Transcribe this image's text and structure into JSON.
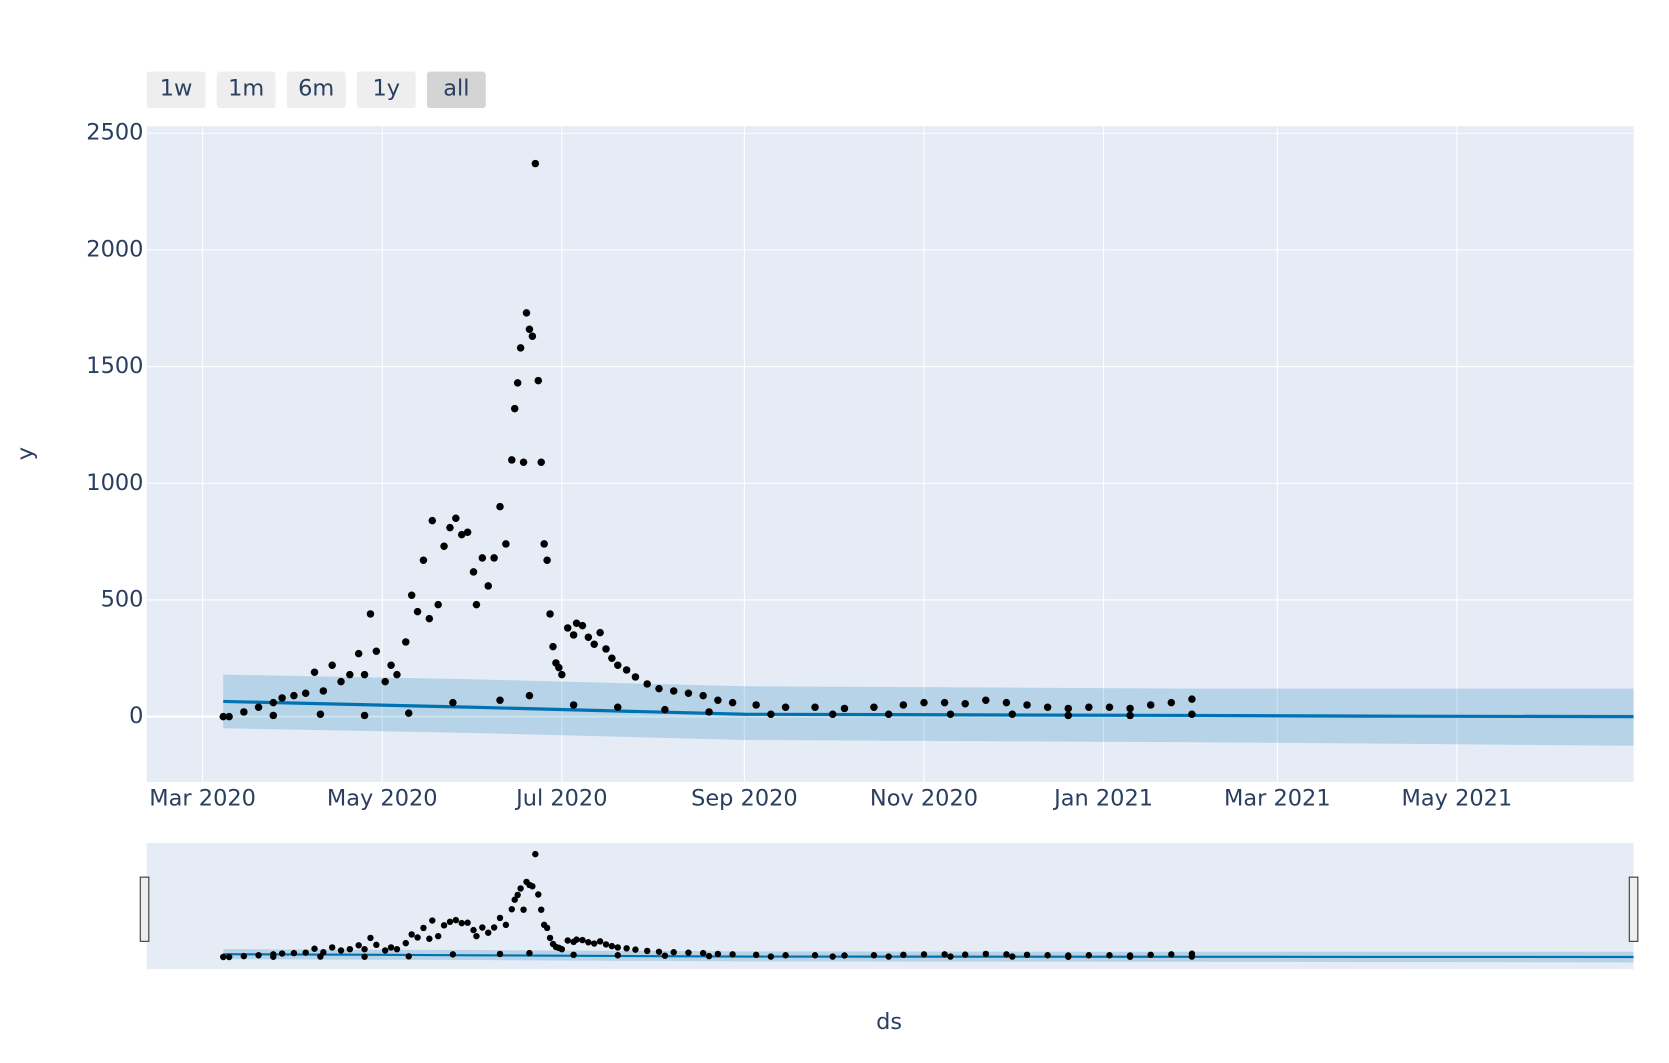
{
  "chart_data": {
    "type": "scatter",
    "x_label": "ds",
    "y_label": "y",
    "range_buttons": [
      {
        "label": "1w"
      },
      {
        "label": "1m"
      },
      {
        "label": "6m"
      },
      {
        "label": "1y"
      },
      {
        "label": "all",
        "active": true
      }
    ],
    "xlim": [
      "2020-02-11",
      "2021-06-30"
    ],
    "ylim": [
      -280,
      2530
    ],
    "grid": true,
    "xticks": [
      {
        "value": "2020-03-01",
        "label": "Mar 2020"
      },
      {
        "value": "2020-05-01",
        "label": "May 2020"
      },
      {
        "value": "2020-07-01",
        "label": "Jul 2020"
      },
      {
        "value": "2020-09-01",
        "label": "Sep 2020"
      },
      {
        "value": "2020-11-01",
        "label": "Nov 2020"
      },
      {
        "value": "2021-01-01",
        "label": "Jan 2021"
      },
      {
        "value": "2021-03-01",
        "label": "Mar 2021"
      },
      {
        "value": "2021-05-01",
        "label": "May 2021"
      }
    ],
    "yticks": [
      0,
      500,
      1000,
      1500,
      2000,
      2500
    ],
    "series": [
      {
        "color": "#000000",
        "x": [
          "2020-03-08",
          "2020-03-15",
          "2020-03-20",
          "2020-03-25",
          "2020-03-28",
          "2020-04-01",
          "2020-04-05",
          "2020-04-08",
          "2020-04-11",
          "2020-04-14",
          "2020-04-17",
          "2020-04-20",
          "2020-04-23",
          "2020-04-25",
          "2020-04-27",
          "2020-04-29",
          "2020-05-02",
          "2020-05-04",
          "2020-05-06",
          "2020-05-09",
          "2020-05-11",
          "2020-05-13",
          "2020-05-15",
          "2020-05-17",
          "2020-05-18",
          "2020-05-20",
          "2020-05-22",
          "2020-05-24",
          "2020-05-26",
          "2020-05-28",
          "2020-05-30",
          "2020-06-01",
          "2020-06-02",
          "2020-06-04",
          "2020-06-06",
          "2020-06-08",
          "2020-06-10",
          "2020-06-12",
          "2020-06-14",
          "2020-06-15",
          "2020-06-16",
          "2020-06-17",
          "2020-06-18",
          "2020-06-19",
          "2020-06-20",
          "2020-06-21",
          "2020-06-22",
          "2020-06-23",
          "2020-06-24",
          "2020-06-25",
          "2020-06-26",
          "2020-06-27",
          "2020-06-28",
          "2020-06-29",
          "2020-06-30",
          "2020-07-01",
          "2020-07-03",
          "2020-07-05",
          "2020-07-06",
          "2020-07-08",
          "2020-07-10",
          "2020-07-12",
          "2020-07-14",
          "2020-07-16",
          "2020-07-18",
          "2020-07-20",
          "2020-07-23",
          "2020-07-26",
          "2020-07-30",
          "2020-08-03",
          "2020-08-08",
          "2020-08-13",
          "2020-08-18",
          "2020-08-23",
          "2020-08-28",
          "2020-09-05",
          "2020-09-15",
          "2020-09-25",
          "2020-10-05",
          "2020-10-15",
          "2020-10-25",
          "2020-11-01",
          "2020-11-08",
          "2020-11-15",
          "2020-11-22",
          "2020-11-29",
          "2020-12-06",
          "2020-12-13",
          "2020-12-20",
          "2020-12-27",
          "2021-01-03",
          "2021-01-10",
          "2021-01-17",
          "2021-01-24",
          "2021-01-31"
        ],
        "values": [
          0,
          20,
          40,
          60,
          80,
          90,
          100,
          190,
          110,
          220,
          150,
          180,
          270,
          180,
          440,
          280,
          150,
          220,
          180,
          320,
          520,
          450,
          670,
          420,
          840,
          480,
          730,
          810,
          850,
          780,
          790,
          620,
          480,
          680,
          560,
          680,
          900,
          740,
          1100,
          1320,
          1430,
          1580,
          1090,
          1730,
          1660,
          1630,
          2370,
          1440,
          1090,
          740,
          670,
          440,
          300,
          230,
          210,
          180,
          380,
          350,
          400,
          390,
          340,
          310,
          360,
          290,
          250,
          220,
          200,
          170,
          140,
          120,
          110,
          100,
          90,
          70,
          60,
          50,
          40,
          40,
          35,
          40,
          50,
          60,
          60,
          55,
          70,
          60,
          50,
          40,
          35,
          40,
          40,
          35,
          50,
          60,
          75
        ]
      },
      {
        "color": "#000000",
        "x": [
          "2020-03-10",
          "2020-03-25",
          "2020-04-10",
          "2020-04-25",
          "2020-05-10",
          "2020-05-25",
          "2020-06-10",
          "2020-06-20",
          "2020-07-05",
          "2020-07-20",
          "2020-08-05",
          "2020-08-20",
          "2020-09-10",
          "2020-10-01",
          "2020-10-20",
          "2020-11-10",
          "2020-12-01",
          "2020-12-20",
          "2021-01-10",
          "2021-01-31"
        ],
        "values": [
          0,
          5,
          10,
          5,
          15,
          60,
          70,
          90,
          50,
          40,
          30,
          20,
          10,
          10,
          10,
          10,
          10,
          5,
          5,
          10
        ]
      }
    ],
    "forecast": {
      "color": "#0072B2",
      "band_color": "rgba(0,114,178,0.2)",
      "x": [
        "2020-03-08",
        "2020-06-01",
        "2020-09-01",
        "2021-02-01",
        "2021-04-01",
        "2021-06-30"
      ],
      "values": [
        65,
        40,
        10,
        5,
        2,
        0
      ],
      "lower": [
        -50,
        -70,
        -100,
        -110,
        -115,
        -125
      ],
      "upper": [
        180,
        160,
        130,
        120,
        120,
        120
      ]
    }
  }
}
